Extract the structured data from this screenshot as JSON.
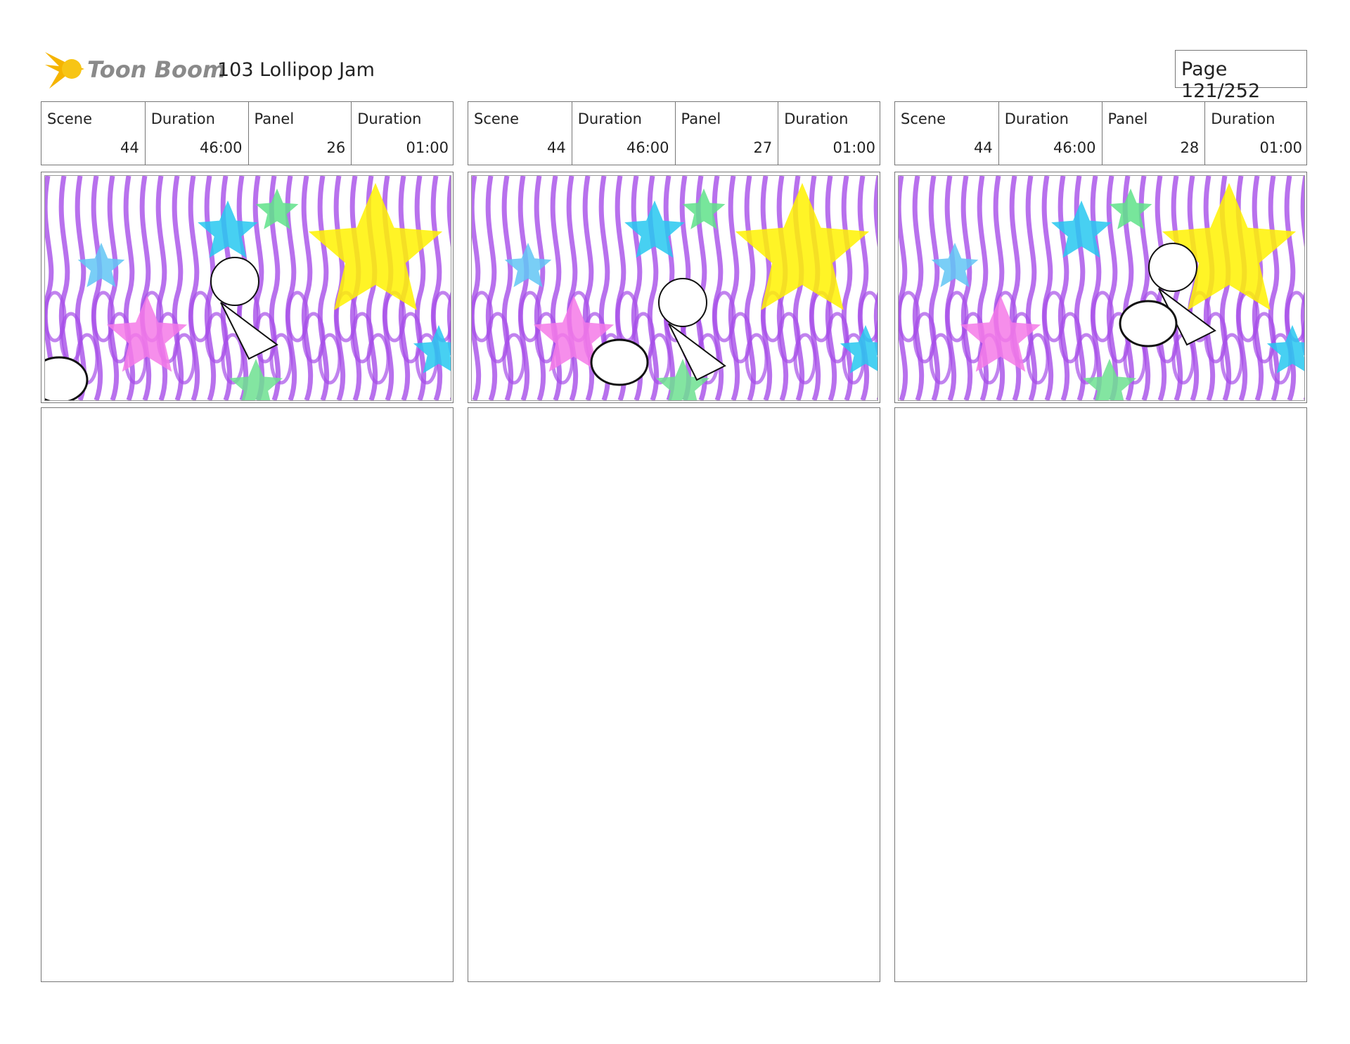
{
  "header": {
    "logo": "Toon Boom",
    "title": "103 Lollipop Jam",
    "page": "Page 121/252"
  },
  "fields": [
    "Scene",
    "Duration",
    "Panel",
    "Duration"
  ],
  "panels": [
    {
      "scene": 44,
      "scene_duration": "46:00",
      "panel": 26,
      "panel_duration": "01:00"
    },
    {
      "scene": 44,
      "scene_duration": "46:00",
      "panel": 27,
      "panel_duration": "01:00"
    },
    {
      "scene": 44,
      "scene_duration": "46:00",
      "panel": 28,
      "panel_duration": "01:00"
    }
  ]
}
